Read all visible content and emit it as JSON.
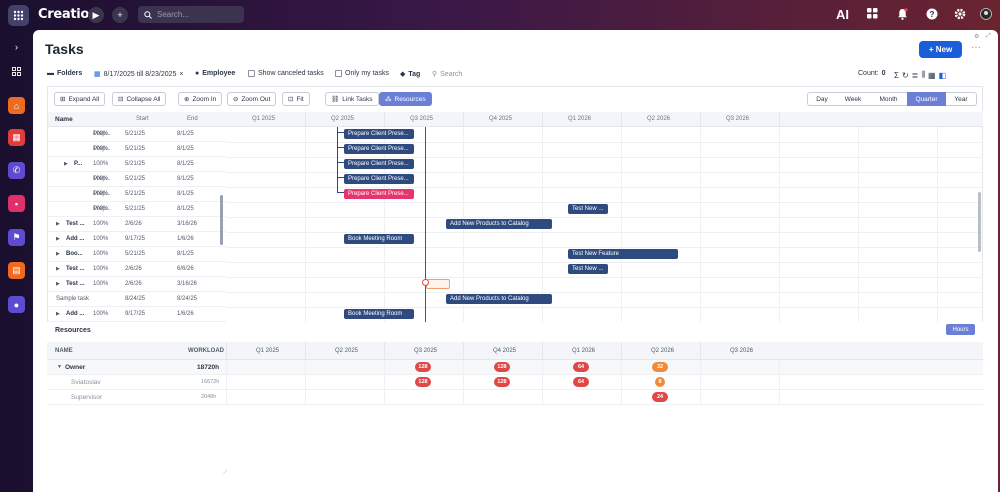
{
  "app": {
    "logo": "Creatio",
    "search_placeholder": "Search...",
    "ai_label": "AI"
  },
  "page": {
    "title": "Tasks",
    "new_label": "+ New",
    "more": "···"
  },
  "filters": {
    "folders": "Folders",
    "date_range": "8/17/2025 till 8/23/2025",
    "employee": "Employee",
    "show_canceled": "Show canceled tasks",
    "only_my": "Only my tasks",
    "tag": "Tag",
    "search": "Search",
    "count_label": "Count:",
    "count_value": "0"
  },
  "toolbar": {
    "expand_all": "Expand All",
    "collapse_all": "Collapse All",
    "zoom_in": "Zoom In",
    "zoom_out": "Zoom Out",
    "fit": "Fit",
    "link_tasks": "Link Tasks",
    "resources": "Resources",
    "scales": [
      "Day",
      "Week",
      "Month",
      "Quarter",
      "Year"
    ],
    "active_scale": "Quarter"
  },
  "grid": {
    "col_name": "Name",
    "col_start": "Start",
    "col_end": "End",
    "rows": [
      {
        "name": "Prep...",
        "pct": "100%",
        "start": "5/21/25",
        "end": "8/1/25",
        "type": "task"
      },
      {
        "name": "Prep...",
        "pct": "100%",
        "start": "5/21/25",
        "end": "8/1/25",
        "type": "task"
      },
      {
        "name": "P...",
        "pct": "100%",
        "start": "5/21/25",
        "end": "8/1/25",
        "type": "group2"
      },
      {
        "name": "Prep...",
        "pct": "100%",
        "start": "5/21/25",
        "end": "8/1/25",
        "type": "task"
      },
      {
        "name": "Prep...",
        "pct": "100%",
        "start": "5/21/25",
        "end": "8/1/25",
        "type": "task"
      },
      {
        "name": "Prep...",
        "pct": "100%",
        "start": "5/21/25",
        "end": "8/1/25",
        "type": "task"
      },
      {
        "name": "Test ...",
        "pct": "100%",
        "start": "2/6/26",
        "end": "3/16/26",
        "type": "group"
      },
      {
        "name": "Add ...",
        "pct": "100%",
        "start": "9/17/25",
        "end": "1/6/26",
        "type": "group"
      },
      {
        "name": "Boo...",
        "pct": "100%",
        "start": "5/21/25",
        "end": "8/1/25",
        "type": "group"
      },
      {
        "name": "Test ...",
        "pct": "100%",
        "start": "2/6/26",
        "end": "6/6/26",
        "type": "group"
      },
      {
        "name": "Test ...",
        "pct": "100%",
        "start": "2/6/26",
        "end": "3/16/26",
        "type": "group"
      },
      {
        "name": "Sample task",
        "pct": "",
        "start": "8/24/25",
        "end": "8/24/25",
        "type": "plain"
      },
      {
        "name": "Add ...",
        "pct": "100%",
        "start": "9/17/25",
        "end": "1/6/26",
        "type": "group"
      }
    ]
  },
  "timeline": {
    "quarters": [
      "Q1 2025",
      "Q2 2025",
      "Q3 2025",
      "Q4 2025",
      "Q1 2026",
      "Q2 2026",
      "Q3 2026"
    ],
    "bars": [
      {
        "label": "Prepare Client Prese...",
        "color": "#2e4a7e",
        "row": 0
      },
      {
        "label": "Prepare Client Prese...",
        "color": "#2e4a7e",
        "row": 1
      },
      {
        "label": "Prepare Client Prese...",
        "color": "#2e4a7e",
        "row": 2
      },
      {
        "label": "Prepare Client Prese...",
        "color": "#2e4a7e",
        "row": 3
      },
      {
        "label": "Prepare Client Prese...",
        "color": "#e8336d",
        "row": 4
      },
      {
        "label": "Test New ...",
        "color": "#2e4a7e",
        "row": 5
      },
      {
        "label": "Add New Products to Catalog",
        "color": "#2e4a7e",
        "row": 6
      },
      {
        "label": "Book Meeting Room",
        "color": "#2e4a7e",
        "row": 7
      },
      {
        "label": "Test New Feature",
        "color": "#2e4a7e",
        "row": 8
      },
      {
        "label": "Test New ...",
        "color": "#2e4a7e",
        "row": 9
      },
      {
        "label": "Add New Products to Catalog",
        "color": "#2e4a7e",
        "row": 11
      },
      {
        "label": "Book Meeting Room",
        "color": "#2e4a7e",
        "row": 12
      }
    ]
  },
  "resources": {
    "title": "Resources",
    "hours_label": "Hours",
    "col_name": "NAME",
    "col_workload": "WORKLOAD",
    "quarters": [
      "Q1 2025",
      "Q2 2025",
      "Q3 2025",
      "Q4 2025",
      "Q1 2026",
      "Q2 2026",
      "Q3 2026"
    ],
    "rows": [
      {
        "name": "Owner",
        "workload": "18720h",
        "group": true,
        "cells": [
          {
            "q": 2,
            "v": "128",
            "c": "#e04848"
          },
          {
            "q": 3,
            "v": "128",
            "c": "#e04848"
          },
          {
            "q": 4,
            "v": "64",
            "c": "#e04848"
          },
          {
            "q": 5,
            "v": "32",
            "c": "#f08a3a"
          }
        ]
      },
      {
        "name": "Sviatoslav",
        "workload": "16672h",
        "group": false,
        "cells": [
          {
            "q": 2,
            "v": "128",
            "c": "#e04848"
          },
          {
            "q": 3,
            "v": "128",
            "c": "#e04848"
          },
          {
            "q": 4,
            "v": "64",
            "c": "#e04848"
          },
          {
            "q": 5,
            "v": "8",
            "c": "#f08a3a"
          }
        ]
      },
      {
        "name": "Supervisor",
        "workload": "2048h",
        "group": false,
        "cells": [
          {
            "q": 5,
            "v": "24",
            "c": "#e04848"
          }
        ]
      }
    ]
  }
}
